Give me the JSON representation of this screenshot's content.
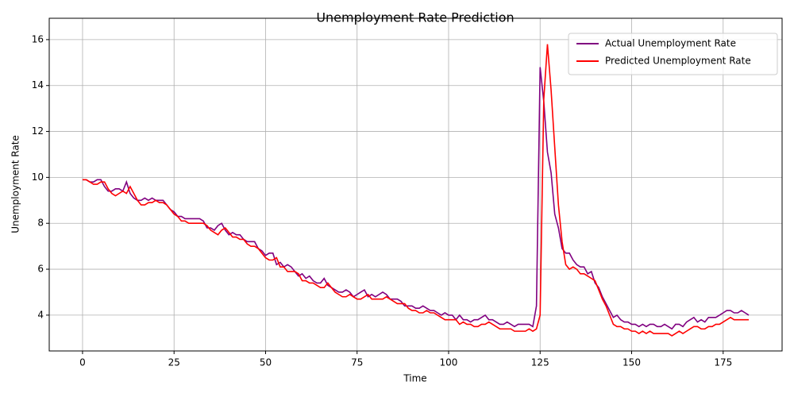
{
  "chart_data": {
    "type": "line",
    "title": "Unemployment Rate Prediction",
    "x_label": "Time",
    "y_label": "Unemployment Rate",
    "x": [
      0,
      1,
      2,
      3,
      4,
      5,
      6,
      7,
      8,
      9,
      10,
      11,
      12,
      13,
      14,
      15,
      16,
      17,
      18,
      19,
      20,
      21,
      22,
      23,
      24,
      25,
      26,
      27,
      28,
      29,
      30,
      31,
      32,
      33,
      34,
      35,
      36,
      37,
      38,
      39,
      40,
      41,
      42,
      43,
      44,
      45,
      46,
      47,
      48,
      49,
      50,
      51,
      52,
      53,
      54,
      55,
      56,
      57,
      58,
      59,
      60,
      61,
      62,
      63,
      64,
      65,
      66,
      67,
      68,
      69,
      70,
      71,
      72,
      73,
      74,
      75,
      76,
      77,
      78,
      79,
      80,
      81,
      82,
      83,
      84,
      85,
      86,
      87,
      88,
      89,
      90,
      91,
      92,
      93,
      94,
      95,
      96,
      97,
      98,
      99,
      100,
      101,
      102,
      103,
      104,
      105,
      106,
      107,
      108,
      109,
      110,
      111,
      112,
      113,
      114,
      115,
      116,
      117,
      118,
      119,
      120,
      121,
      122,
      123,
      124,
      125,
      126,
      127,
      128,
      129,
      130,
      131,
      132,
      133,
      134,
      135,
      136,
      137,
      138,
      139,
      140,
      141,
      142,
      143,
      144,
      145,
      146,
      147,
      148,
      149,
      150,
      151,
      152,
      153,
      154,
      155,
      156,
      157,
      158,
      159,
      160,
      161,
      162,
      163,
      164,
      165,
      166,
      167,
      168,
      169,
      170,
      171,
      172,
      173,
      174,
      175,
      176,
      177,
      178,
      179,
      180,
      181,
      182
    ],
    "series": [
      {
        "name": "Actual Unemployment Rate",
        "color": "#800080",
        "values": [
          9.9,
          9.9,
          9.8,
          9.8,
          9.9,
          9.9,
          9.6,
          9.4,
          9.4,
          9.5,
          9.5,
          9.4,
          9.8,
          9.3,
          9.1,
          9.0,
          9.0,
          9.1,
          9.0,
          9.1,
          9.0,
          9.0,
          9.0,
          8.8,
          8.6,
          8.5,
          8.3,
          8.3,
          8.2,
          8.2,
          8.2,
          8.2,
          8.2,
          8.1,
          7.8,
          7.8,
          7.7,
          7.9,
          8.0,
          7.7,
          7.5,
          7.6,
          7.5,
          7.5,
          7.3,
          7.2,
          7.2,
          7.2,
          6.9,
          6.8,
          6.6,
          6.7,
          6.7,
          6.2,
          6.3,
          6.1,
          6.2,
          6.1,
          5.9,
          5.7,
          5.8,
          5.6,
          5.7,
          5.5,
          5.4,
          5.4,
          5.6,
          5.3,
          5.2,
          5.1,
          5.0,
          5.0,
          5.1,
          5.0,
          4.8,
          4.9,
          5.0,
          5.1,
          4.8,
          4.9,
          4.8,
          4.9,
          5.0,
          4.9,
          4.7,
          4.7,
          4.7,
          4.6,
          4.4,
          4.4,
          4.4,
          4.3,
          4.3,
          4.4,
          4.3,
          4.2,
          4.2,
          4.1,
          4.0,
          4.1,
          4.0,
          4.0,
          3.8,
          4.0,
          3.8,
          3.8,
          3.7,
          3.8,
          3.8,
          3.9,
          4.0,
          3.8,
          3.8,
          3.7,
          3.6,
          3.6,
          3.7,
          3.6,
          3.5,
          3.6,
          3.6,
          3.6,
          3.6,
          3.5,
          4.4,
          14.8,
          13.3,
          11.1,
          10.2,
          8.4,
          7.8,
          6.9,
          6.7,
          6.7,
          6.4,
          6.2,
          6.1,
          6.1,
          5.8,
          5.9,
          5.4,
          5.2,
          4.8,
          4.5,
          4.2,
          3.9,
          4.0,
          3.8,
          3.7,
          3.7,
          3.6,
          3.6,
          3.5,
          3.6,
          3.5,
          3.6,
          3.6,
          3.5,
          3.5,
          3.6,
          3.5,
          3.4,
          3.6,
          3.6,
          3.5,
          3.7,
          3.8,
          3.9,
          3.7,
          3.8,
          3.7,
          3.9,
          3.9,
          3.9,
          4.0,
          4.1,
          4.2,
          4.2,
          4.1,
          4.1,
          4.2,
          4.1,
          4.0
        ]
      },
      {
        "name": "Predicted Unemployment Rate",
        "color": "#ff0000",
        "values": [
          9.9,
          9.9,
          9.8,
          9.7,
          9.7,
          9.8,
          9.8,
          9.5,
          9.3,
          9.2,
          9.3,
          9.4,
          9.3,
          9.6,
          9.3,
          9.0,
          8.8,
          8.8,
          8.9,
          8.9,
          9.0,
          8.9,
          8.9,
          8.8,
          8.6,
          8.4,
          8.3,
          8.1,
          8.1,
          8.0,
          8.0,
          8.0,
          8.0,
          8.0,
          7.9,
          7.7,
          7.6,
          7.5,
          7.7,
          7.8,
          7.6,
          7.4,
          7.4,
          7.3,
          7.3,
          7.1,
          7.0,
          7.0,
          6.9,
          6.7,
          6.5,
          6.4,
          6.4,
          6.5,
          6.1,
          6.1,
          5.9,
          5.9,
          5.9,
          5.8,
          5.5,
          5.5,
          5.4,
          5.4,
          5.3,
          5.2,
          5.2,
          5.4,
          5.2,
          5.0,
          4.9,
          4.8,
          4.8,
          4.9,
          4.8,
          4.7,
          4.7,
          4.8,
          4.9,
          4.7,
          4.7,
          4.7,
          4.7,
          4.8,
          4.7,
          4.6,
          4.5,
          4.5,
          4.5,
          4.3,
          4.2,
          4.2,
          4.1,
          4.1,
          4.2,
          4.1,
          4.1,
          4.0,
          3.9,
          3.8,
          3.8,
          3.8,
          3.8,
          3.6,
          3.7,
          3.6,
          3.6,
          3.5,
          3.5,
          3.6,
          3.6,
          3.7,
          3.6,
          3.5,
          3.4,
          3.4,
          3.4,
          3.4,
          3.3,
          3.3,
          3.3,
          3.3,
          3.4,
          3.3,
          3.4,
          4.0,
          13.4,
          15.8,
          13.8,
          11.3,
          8.8,
          7.2,
          6.2,
          6.0,
          6.1,
          6.0,
          5.8,
          5.8,
          5.7,
          5.6,
          5.5,
          5.1,
          4.7,
          4.4,
          4.0,
          3.6,
          3.5,
          3.5,
          3.4,
          3.4,
          3.3,
          3.3,
          3.2,
          3.3,
          3.2,
          3.3,
          3.2,
          3.2,
          3.2,
          3.2,
          3.2,
          3.1,
          3.2,
          3.3,
          3.2,
          3.3,
          3.4,
          3.5,
          3.5,
          3.4,
          3.4,
          3.5,
          3.5,
          3.6,
          3.6,
          3.7,
          3.8,
          3.9,
          3.8,
          3.8,
          3.8,
          3.8,
          3.8
        ]
      }
    ],
    "xlim": [
      -9.1,
      191.1
    ],
    "ylim": [
      2.44,
      16.93
    ],
    "xticks": [
      0,
      25,
      50,
      75,
      100,
      125,
      150,
      175
    ],
    "yticks": [
      4,
      6,
      8,
      10,
      12,
      14,
      16
    ],
    "grid": true,
    "legend": "upper right"
  }
}
